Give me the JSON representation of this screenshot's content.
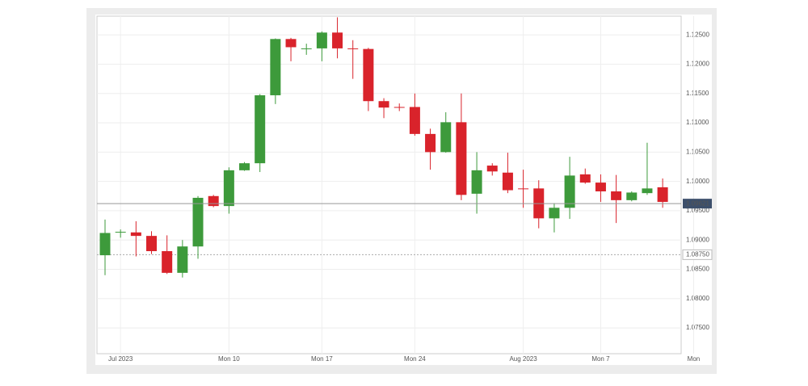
{
  "chart_data": {
    "type": "candlestick",
    "categories": [
      null,
      "Jul 2023",
      null,
      null,
      null,
      null,
      null,
      null,
      "Mon 10",
      null,
      null,
      null,
      null,
      null,
      "Mon 17",
      null,
      null,
      null,
      null,
      null,
      "Mon 24",
      null,
      null,
      null,
      null,
      null,
      null,
      "Aug 2023",
      null,
      null,
      null,
      null,
      "Mon 7",
      null,
      null,
      null,
      null,
      null,
      "Mon"
    ],
    "open": [
      1.0874,
      1.0913,
      1.0913,
      1.0907,
      1.0881,
      1.0844,
      1.0889,
      1.0975,
      1.0958,
      1.1019,
      1.1031,
      1.1147,
      1.1243,
      1.1226,
      1.1227,
      1.1254,
      1.1227,
      1.1226,
      1.1137,
      1.1127,
      1.1127,
      1.1081,
      1.105,
      1.1101,
      1.0979,
      1.1027,
      1.1015,
      1.0988,
      1.0988,
      1.0937,
      1.0955,
      1.1012,
      1.0998,
      1.0983,
      1.0968,
      1.098,
      1.099,
      null,
      null
    ],
    "high": [
      1.0935,
      1.0918,
      1.0932,
      1.0915,
      1.0908,
      1.09,
      1.0975,
      1.0977,
      1.1024,
      1.1033,
      1.1149,
      1.1244,
      1.1245,
      1.1235,
      1.1256,
      1.128,
      1.1241,
      1.1228,
      1.1142,
      1.1133,
      1.115,
      1.109,
      1.1118,
      1.115,
      1.105,
      1.1031,
      1.1049,
      1.102,
      1.1002,
      1.0963,
      1.1042,
      1.1022,
      1.1012,
      1.1011,
      1.0983,
      1.1066,
      1.1005,
      null,
      null
    ],
    "low": [
      1.084,
      1.0904,
      1.0872,
      1.0876,
      1.0842,
      1.0836,
      1.0868,
      1.0956,
      1.0945,
      1.1018,
      1.1016,
      1.1132,
      1.1205,
      1.1216,
      1.1205,
      1.121,
      1.1175,
      1.112,
      1.1108,
      1.112,
      1.1078,
      1.102,
      1.1049,
      1.0968,
      1.0945,
      1.101,
      1.098,
      1.0955,
      1.092,
      1.0913,
      1.0936,
      1.0996,
      1.0965,
      1.0929,
      1.0966,
      1.0977,
      1.0955,
      null,
      null
    ],
    "close": [
      1.0912,
      1.0914,
      1.0907,
      1.0881,
      1.0844,
      1.0889,
      1.0972,
      1.0958,
      1.1019,
      1.1031,
      1.1147,
      1.1243,
      1.1229,
      1.1227,
      1.1254,
      1.1227,
      1.1226,
      1.1137,
      1.1126,
      1.1126,
      1.1081,
      1.105,
      1.1101,
      1.0977,
      1.1019,
      1.1017,
      1.0985,
      1.0987,
      1.0937,
      1.0955,
      1.101,
      1.0998,
      1.0983,
      1.0968,
      1.0981,
      1.0988,
      1.0965,
      null,
      null
    ],
    "up_color": "#3d9a3b",
    "down_color": "#d9232b",
    "ylim": [
      1.0706,
      1.1282
    ],
    "yticks": [
      {
        "value": 1.075,
        "label": "1.07500"
      },
      {
        "value": 1.08,
        "label": "1.08000"
      },
      {
        "value": 1.085,
        "label": "1.08500"
      },
      {
        "value": 1.09,
        "label": "1.09000"
      },
      {
        "value": 1.095,
        "label": "1.09500"
      },
      {
        "value": 1.1,
        "label": "1.10000"
      },
      {
        "value": 1.105,
        "label": "1.10500"
      },
      {
        "value": 1.11,
        "label": "1.11000"
      },
      {
        "value": 1.115,
        "label": "1.11500"
      },
      {
        "value": 1.12,
        "label": "1.12000"
      },
      {
        "value": 1.125,
        "label": "1.12500"
      }
    ],
    "current_price": 1.09621,
    "reference_price": {
      "value": 1.0875,
      "label": "1.08750"
    },
    "grid": true
  }
}
